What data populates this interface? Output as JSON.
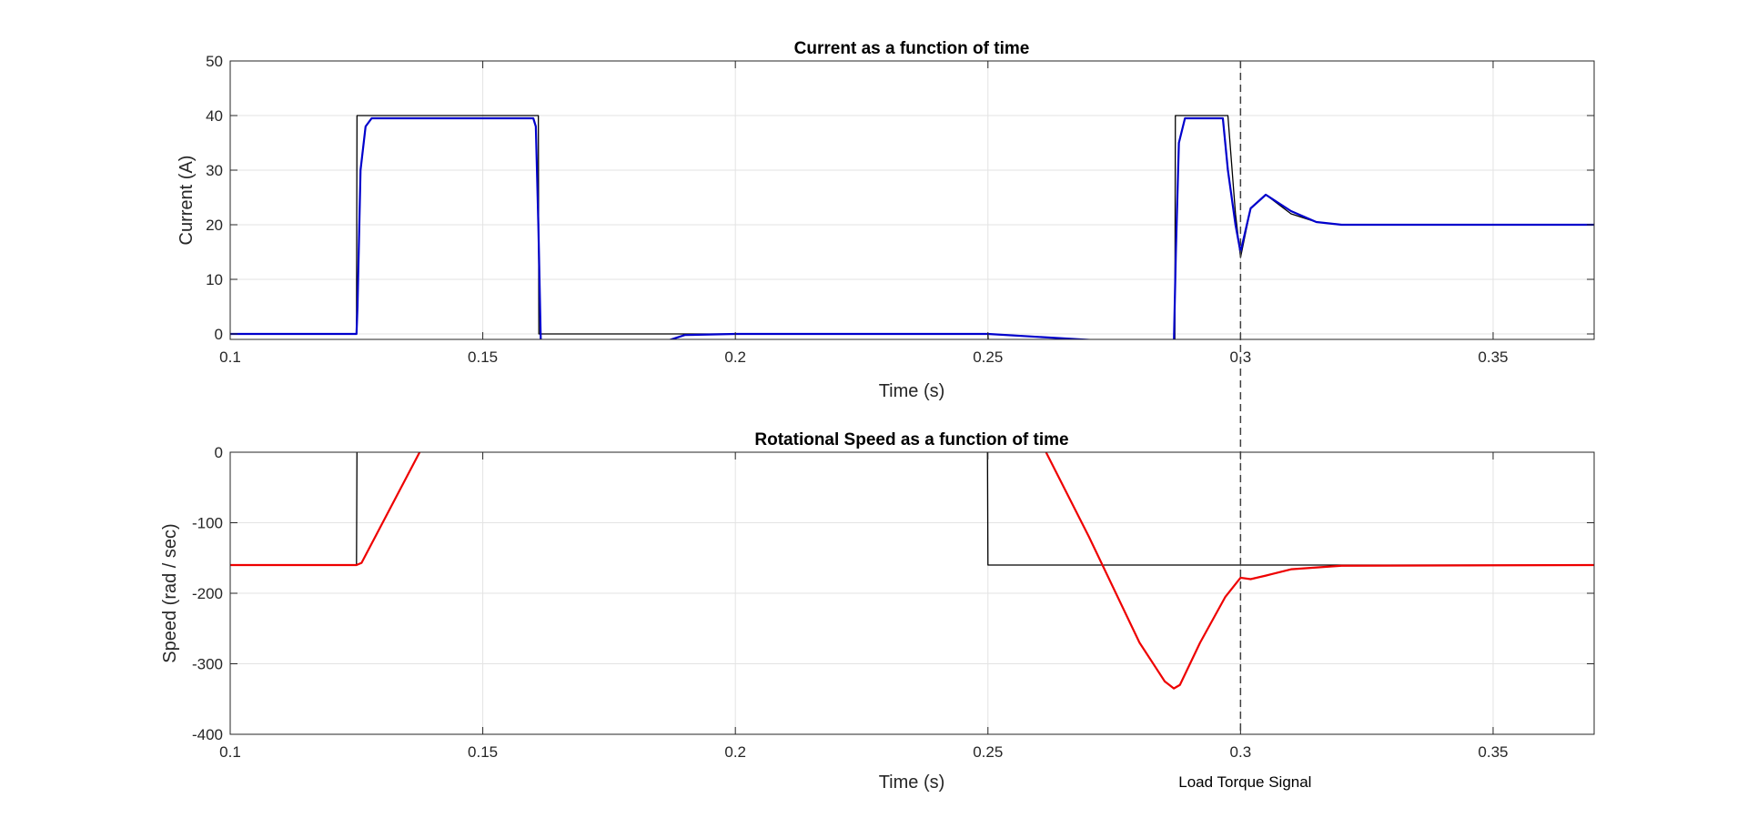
{
  "chart_data": [
    {
      "type": "line",
      "title": "Current as a function of time",
      "xlabel": "Time (s)",
      "ylabel": "Current (A)",
      "xlim": [
        0.1,
        0.37
      ],
      "ylim": [
        -1,
        50
      ],
      "xticks": [
        "0.1",
        "0.15",
        "0.2",
        "0.25",
        "0.3",
        "0.35"
      ],
      "yticks": [
        "0",
        "10",
        "20",
        "30",
        "40",
        "50"
      ],
      "grid": true,
      "colors": {
        "reference": "#000000",
        "measured": "#0000cc"
      },
      "series": [
        {
          "x": [
            0.1,
            0.125,
            0.1251,
            0.161,
            0.1611,
            0.25,
            0.2501,
            0.287,
            0.2871,
            0.2975,
            0.299,
            0.3,
            0.302,
            0.305,
            0.31,
            0.315,
            0.32,
            0.33,
            0.37
          ],
          "y": [
            0,
            0,
            40,
            40,
            0,
            0,
            -2,
            -2,
            40,
            40,
            22,
            14,
            23,
            25.5,
            22,
            20.5,
            20,
            20,
            20
          ]
        },
        {
          "x": [
            0.1,
            0.125,
            0.1252,
            0.1258,
            0.1268,
            0.128,
            0.16,
            0.1605,
            0.161,
            0.1615,
            0.184,
            0.19,
            0.2,
            0.25,
            0.2868,
            0.2872,
            0.2878,
            0.289,
            0.2965,
            0.2975,
            0.299,
            0.3,
            0.302,
            0.305,
            0.31,
            0.315,
            0.32,
            0.33,
            0.37
          ],
          "y": [
            0,
            0,
            5,
            30,
            38,
            39.5,
            39.5,
            38,
            20,
            -2,
            -2,
            -0.2,
            0,
            0,
            -2,
            15,
            35,
            39.5,
            39.5,
            30,
            20,
            15,
            23,
            25.5,
            22.5,
            20.5,
            20,
            20,
            20
          ]
        }
      ]
    },
    {
      "type": "line",
      "title": "Rotational Speed as a function of time",
      "xlabel": "Time (s)",
      "ylabel": "Speed (rad / sec)",
      "xlim": [
        0.1,
        0.37
      ],
      "ylim": [
        -400,
        0
      ],
      "xticks": [
        "0.1",
        "0.15",
        "0.2",
        "0.25",
        "0.3",
        "0.35"
      ],
      "yticks": [
        "0",
        "-100",
        "-200",
        "-300",
        "-400"
      ],
      "grid": true,
      "annotation": "Load Torque Signal",
      "annotation_x": 0.3,
      "colors": {
        "reference": "#000000",
        "measured": "#ee0000"
      },
      "series": [
        {
          "x": [
            0.1,
            0.125,
            0.1251,
            0.2499,
            0.25,
            0.37
          ],
          "y": [
            -160,
            -160,
            10,
            10,
            -160,
            -160
          ]
        },
        {
          "x": [
            0.1,
            0.125,
            0.126,
            0.1375,
            0.1385,
            0.2605,
            0.2615,
            0.27,
            0.28,
            0.285,
            0.2868,
            0.288,
            0.292,
            0.297,
            0.3,
            0.302,
            0.305,
            0.31,
            0.32,
            0.37
          ],
          "y": [
            -160,
            -160,
            -157,
            0,
            10,
            10,
            0,
            -120,
            -270,
            -325,
            -335,
            -330,
            -270,
            -205,
            -178,
            -180,
            -175,
            -166,
            -161,
            -160
          ]
        }
      ]
    }
  ]
}
